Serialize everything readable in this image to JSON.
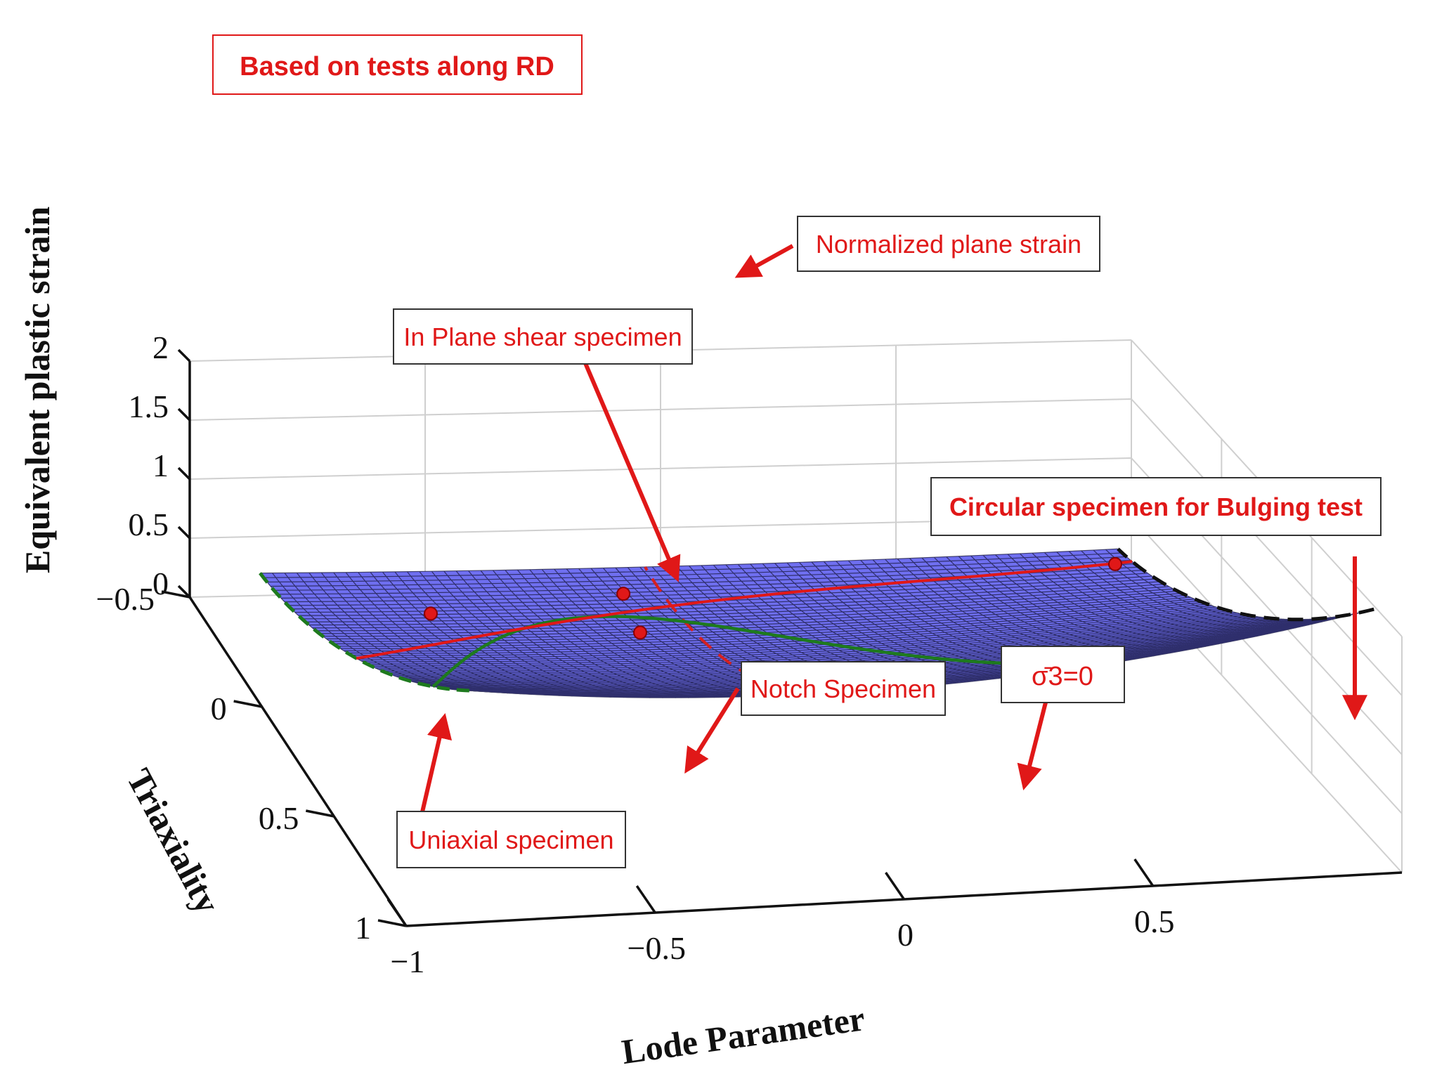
{
  "chart_data": {
    "type": "surface",
    "title": "Based on tests along RD",
    "zlabel": "Equivalent plastic strain",
    "ylabel": "Triaxiality",
    "xlabel": "Lode Parameter",
    "zlim": [
      0,
      2
    ],
    "ylim": [
      -0.5,
      1
    ],
    "xlim": [
      -1,
      1
    ],
    "z_ticks": [
      "0",
      "0.5",
      "1",
      "1.5",
      "2"
    ],
    "y_ticks": [
      "−0.5",
      "0",
      "0.5",
      "1"
    ],
    "x_ticks": [
      "−1",
      "−0.5",
      "0",
      "0.5"
    ],
    "surface_color": "#6f6ff0",
    "mesh_color": "#1a1a40",
    "series": [
      {
        "name": "Normalized plane strain",
        "style": "dashed",
        "color": "#d62020"
      },
      {
        "name": "σ̄3=0",
        "style": "solid",
        "color": "#e01818"
      },
      {
        "style": "solid",
        "color": "#1e7a1e"
      },
      {
        "style": "dashed",
        "color": "#1e7a1e"
      },
      {
        "style": "dashed",
        "color": "#111111"
      }
    ],
    "annotations": [
      {
        "text": "Normalized plane strain"
      },
      {
        "text": "In Plane shear specimen"
      },
      {
        "text": "Circular specimen for Bulging test"
      },
      {
        "text": "Notch Specimen"
      },
      {
        "text": "Uniaxial specimen"
      },
      {
        "text": "σ̄3=0"
      }
    ],
    "grid": true,
    "legend": "none"
  }
}
